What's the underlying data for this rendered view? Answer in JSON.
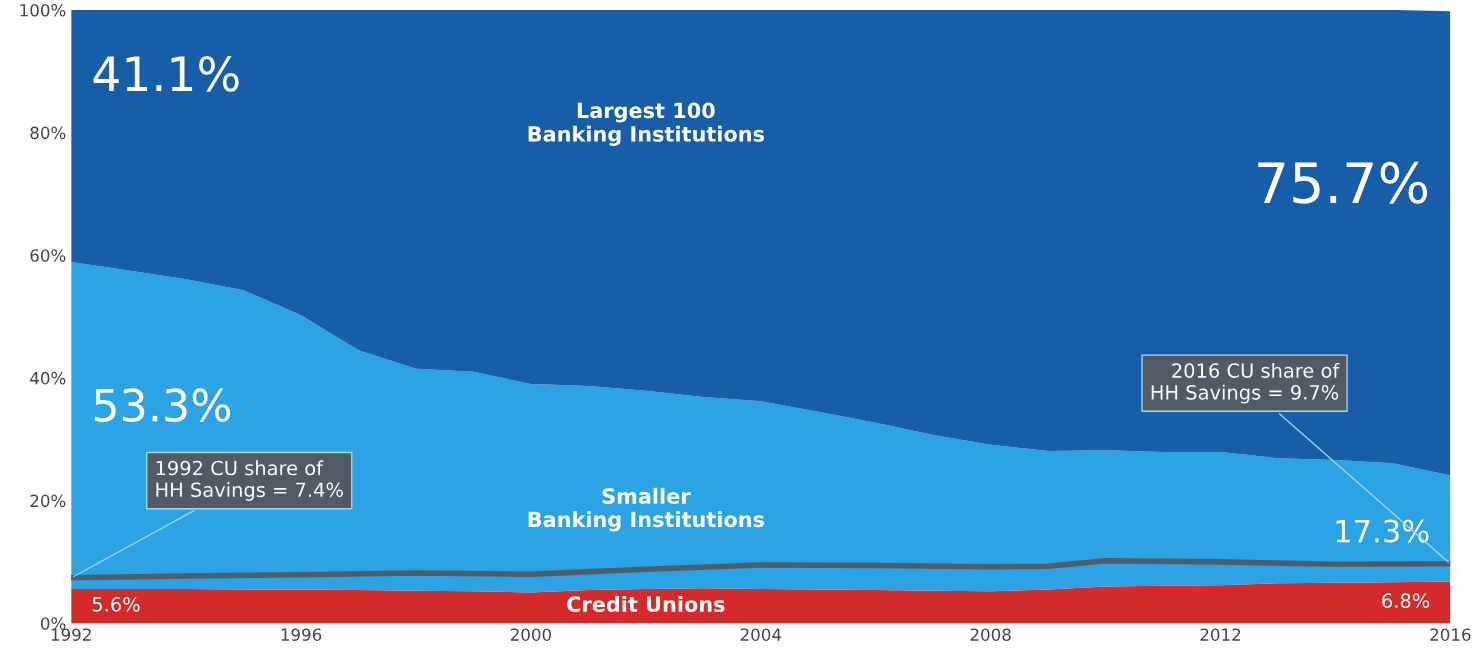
{
  "chart_data": {
    "type": "area",
    "stacked": true,
    "x": [
      1992,
      1993,
      1994,
      1995,
      1996,
      1997,
      1998,
      1999,
      2000,
      2001,
      2002,
      2003,
      2004,
      2005,
      2006,
      2007,
      2008,
      2009,
      2010,
      2011,
      2012,
      2013,
      2014,
      2015,
      2016
    ],
    "series": [
      {
        "name": "Credit Unions",
        "color": "#d42a2a",
        "values": [
          5.6,
          5.6,
          5.6,
          5.5,
          5.5,
          5.4,
          5.3,
          5.2,
          5.0,
          5.4,
          5.6,
          5.7,
          5.6,
          5.5,
          5.4,
          5.3,
          5.2,
          5.5,
          6.0,
          6.1,
          6.2,
          6.5,
          6.6,
          6.7,
          6.8
        ],
        "value_labels": [
          "5.6%",
          null,
          null,
          null,
          null,
          null,
          null,
          null,
          null,
          null,
          null,
          null,
          null,
          null,
          null,
          null,
          null,
          null,
          null,
          null,
          null,
          null,
          null,
          null,
          "6.8%"
        ]
      },
      {
        "name": "Smaller\nBanking Institutions",
        "color": "#2ba3e4",
        "values": [
          53.3,
          51.9,
          50.5,
          48.8,
          44.7,
          39.1,
          36.2,
          35.8,
          34.0,
          33.3,
          32.3,
          31.2,
          30.6,
          29.0,
          27.3,
          25.4,
          23.9,
          22.6,
          22.2,
          21.8,
          21.7,
          20.4,
          20.0,
          19.4,
          17.3
        ],
        "value_labels": [
          "53.3%",
          null,
          null,
          null,
          null,
          null,
          null,
          null,
          null,
          null,
          null,
          null,
          null,
          null,
          null,
          null,
          null,
          null,
          null,
          null,
          null,
          null,
          null,
          null,
          "17.3%"
        ]
      },
      {
        "name": "Largest 100\nBanking Institutions",
        "color": "#175ea8",
        "values": [
          41.1,
          42.5,
          43.9,
          45.7,
          49.8,
          55.5,
          58.5,
          59.0,
          61.0,
          61.3,
          62.1,
          63.1,
          63.8,
          65.5,
          67.3,
          69.3,
          70.9,
          71.9,
          71.8,
          72.1,
          72.1,
          73.1,
          73.4,
          73.9,
          75.7
        ],
        "value_labels": [
          "41.1%",
          null,
          null,
          null,
          null,
          null,
          null,
          null,
          null,
          null,
          null,
          null,
          null,
          null,
          null,
          null,
          null,
          null,
          null,
          null,
          null,
          null,
          null,
          null,
          "75.7%"
        ]
      },
      {
        "type": "line",
        "color": "#4e5d68",
        "x": [
          1992,
          1994,
          1996,
          1998,
          2000,
          2002,
          2004,
          2006,
          2008,
          2009,
          2010,
          2012,
          2014,
          2016
        ],
        "values": [
          7.4,
          7.7,
          7.9,
          8.2,
          8.0,
          8.8,
          9.5,
          9.4,
          9.2,
          9.3,
          10.2,
          10.0,
          9.6,
          9.7
        ]
      }
    ],
    "annotations": [
      {
        "text": "1992 CU share of\nHH Savings = 7.4%",
        "x": 1992,
        "y": 7.4
      },
      {
        "text": "2016 CU share of\nHH Savings = 9.7%",
        "x": 2016,
        "y": 9.7
      }
    ],
    "xlim": [
      1992,
      2016
    ],
    "xticks": [
      1992,
      1996,
      2000,
      2004,
      2008,
      2012,
      2016
    ],
    "ylim": [
      0,
      100
    ],
    "yticks": [
      {
        "value": 0,
        "label": "0%"
      },
      {
        "value": 20,
        "label": "20%"
      },
      {
        "value": 40,
        "label": "40%"
      },
      {
        "value": 60,
        "label": "60%"
      },
      {
        "value": 80,
        "label": "80%"
      },
      {
        "value": 100,
        "label": "100%"
      }
    ],
    "grid": false,
    "legend": false
  }
}
